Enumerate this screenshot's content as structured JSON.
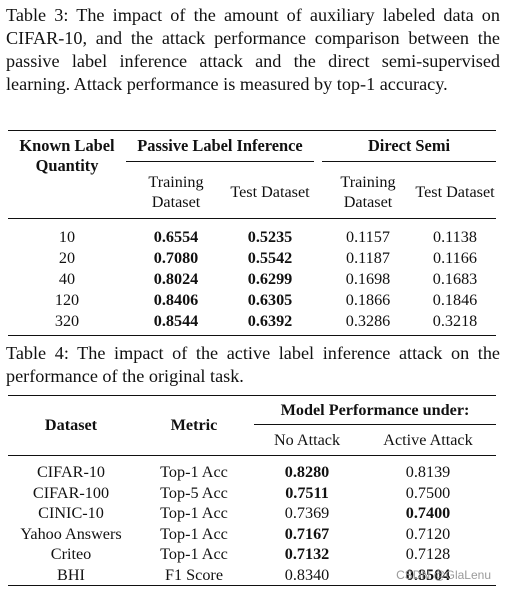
{
  "table3": {
    "caption": "Table 3: The impact of the amount of auxiliary labeled data on CIFAR-10, and the attack performance comparison between the passive label inference attack and the direct semi-supervised learning. Attack performance is measured by top-1 accuracy.",
    "col_known": "Known Label Quantity",
    "group_passive": "Passive Label Inference",
    "group_direct": "Direct Semi",
    "sub_train": "Training Dataset",
    "sub_test": "Test Dataset",
    "rows": [
      {
        "q": "10",
        "pt": "0.6554",
        "pte": "0.5235",
        "dt": "0.1157",
        "dte": "0.1138"
      },
      {
        "q": "20",
        "pt": "0.7080",
        "pte": "0.5542",
        "dt": "0.1187",
        "dte": "0.1166"
      },
      {
        "q": "40",
        "pt": "0.8024",
        "pte": "0.6299",
        "dt": "0.1698",
        "dte": "0.1683"
      },
      {
        "q": "120",
        "pt": "0.8406",
        "pte": "0.6305",
        "dt": "0.1866",
        "dte": "0.1846"
      },
      {
        "q": "320",
        "pt": "0.8544",
        "pte": "0.6392",
        "dt": "0.3286",
        "dte": "0.3218"
      }
    ]
  },
  "table4": {
    "caption": "Table 4: The impact of the active label inference attack on the performance of the original task.",
    "col_dataset": "Dataset",
    "col_metric": "Metric",
    "group_model": "Model Performance under:",
    "sub_no": "No Attack",
    "sub_active": "Active Attack",
    "rows": [
      {
        "ds": "CIFAR-10",
        "m": "Top-1 Acc",
        "no": "0.8280",
        "act": "0.8139",
        "bold": "no"
      },
      {
        "ds": "CIFAR-100",
        "m": "Top-5 Acc",
        "no": "0.7511",
        "act": "0.7500",
        "bold": "no"
      },
      {
        "ds": "CINIC-10",
        "m": "Top-1 Acc",
        "no": "0.7369",
        "act": "0.7400",
        "bold": "act"
      },
      {
        "ds": "Yahoo Answers",
        "m": "Top-1 Acc",
        "no": "0.7167",
        "act": "0.7120",
        "bold": "no"
      },
      {
        "ds": "Criteo",
        "m": "Top-1 Acc",
        "no": "0.7132",
        "act": "0.7128",
        "bold": "no"
      },
      {
        "ds": "BHI",
        "m": "F1 Score",
        "no": "0.8340",
        "act": "0.8504",
        "bold": "act"
      }
    ]
  },
  "watermark": "CSDN @GlaLenu"
}
